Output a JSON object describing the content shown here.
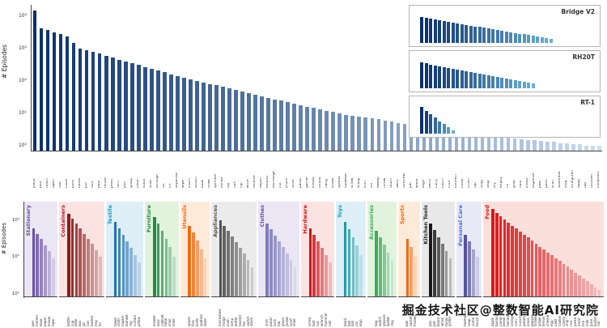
{
  "watermark": "掘金技术社区@整数智能AI研究院",
  "chart_data": [
    {
      "id": "skills",
      "type": "bar",
      "title": "",
      "xlabel": "",
      "ylabel": "# Episodes",
      "yscale": "log",
      "ylim": [
        0.7,
        22000
      ],
      "yticks": [
        "10⁰",
        "10¹",
        "10²",
        "10³",
        "10⁴"
      ],
      "legend": "none",
      "grid": false,
      "color_scale": [
        "#08306b",
        "#c9ddf0"
      ],
      "categories": [
        "place",
        "pick",
        "reach",
        "open",
        "use",
        "close",
        "push",
        "move",
        "put",
        "fold",
        "pour",
        "rotate",
        "press",
        "turn",
        "pull",
        "grasp",
        "clean",
        "stack",
        "slide",
        "arrange",
        "tilt",
        "lift",
        "separate",
        "wipe",
        "insert",
        "attach",
        "blow",
        "draw",
        "sprinkle",
        "center",
        "lay",
        "mix",
        "flip",
        "write",
        "receive",
        "adjust",
        "extend",
        "exchange",
        "cut",
        "brush",
        "drink",
        "paste",
        "gather",
        "knead",
        "unfold",
        "hang",
        "shake",
        "spread",
        "squeeze",
        "screw",
        "scoop",
        "shift",
        "stir",
        "sweep",
        "throw",
        "touch",
        "twist",
        "unscrew",
        "pat",
        "wave",
        "align",
        "bend",
        "carry",
        "catch",
        "click",
        "connect",
        "cover",
        "crush",
        "dip",
        "drag",
        "drop",
        "dry",
        "empty",
        "fill",
        "grab",
        "hold",
        "knock",
        "organize",
        "peel",
        "point",
        "scan",
        "assemble",
        "step",
        "straighten",
        "swap",
        "tap",
        "uncover",
        "compress"
      ],
      "values": [
        15000,
        4200,
        3600,
        3100,
        2700,
        2300,
        1500,
        1000,
        900,
        800,
        700,
        600,
        520,
        450,
        400,
        350,
        310,
        270,
        240,
        210,
        185,
        160,
        140,
        125,
        110,
        100,
        90,
        80,
        72,
        65,
        58,
        52,
        47,
        42,
        38,
        34,
        30,
        27,
        25,
        22,
        20,
        18,
        16,
        15,
        13,
        12,
        11,
        10,
        9,
        8.5,
        8,
        7.5,
        7,
        6.5,
        6,
        5.5,
        5,
        4.8,
        4.5,
        4.2,
        4,
        3.8,
        3.5,
        3.2,
        3,
        2.8,
        2.6,
        2.5,
        2.3,
        2.2,
        2,
        2,
        1.9,
        1.8,
        1.7,
        1.6,
        1.5,
        1.5,
        1.4,
        1.3,
        1.3,
        1.2,
        1.2,
        1.1,
        1.1,
        1,
        1,
        1
      ]
    },
    {
      "id": "insets",
      "type": "bar",
      "yscale": "log",
      "bar_color_scale": [
        "#08306b",
        "#6baed6"
      ],
      "panels": [
        {
          "label": "Bridge V2",
          "values": [
            2400,
            1900,
            1600,
            1350,
            1150,
            1000,
            870,
            760,
            660,
            580,
            510,
            450,
            390,
            340,
            300,
            260,
            230,
            200,
            175,
            150,
            130,
            115,
            100,
            88,
            77,
            67,
            59,
            51,
            45,
            40
          ]
        },
        {
          "label": "RH20T",
          "values": [
            2000,
            1600,
            1300,
            1100,
            950,
            800,
            690,
            590,
            510,
            440,
            380,
            330,
            285,
            245,
            210,
            180,
            155,
            135,
            115,
            100,
            86,
            74,
            64,
            55,
            48,
            41
          ]
        },
        {
          "label": "RT-1",
          "values": [
            70000,
            22000,
            9000,
            3500,
            1400,
            600,
            250,
            100
          ]
        }
      ]
    },
    {
      "id": "objects",
      "type": "bar",
      "title": "",
      "xlabel": "",
      "ylabel": "# Episodes",
      "yscale": "log",
      "ylim": [
        8,
        3200
      ],
      "yticks": [
        "10¹",
        "10²",
        "10³"
      ],
      "grid": false,
      "groups": [
        {
          "label": "Stationary",
          "label_color": "#6a51a3",
          "bg": "#eae6f3",
          "bar_color": "#6a51a3",
          "categories": [
            "pen",
            "marker",
            "book",
            "paper",
            "eraser",
            "tape"
          ],
          "values": [
            600,
            420,
            300,
            200,
            140,
            90
          ]
        },
        {
          "label": "Containers",
          "label_color": "#b2182b",
          "bg": "#fbe3e1",
          "bar_color": "#8b1a1a",
          "categories": [
            "bottle",
            "cup",
            "bowl",
            "box",
            "jar",
            "can",
            "basket",
            "tray",
            "lid"
          ],
          "values": [
            1500,
            1100,
            800,
            600,
            420,
            300,
            220,
            150,
            100
          ]
        },
        {
          "label": "Textile",
          "label_color": "#1f9bbf",
          "bg": "#ddeef7",
          "bar_color": "#2171b5",
          "categories": [
            "towel",
            "cloth",
            "napkin",
            "blanket",
            "rag",
            "curtain",
            "pillow"
          ],
          "values": [
            900,
            600,
            400,
            260,
            170,
            110,
            70
          ]
        },
        {
          "label": "Furniture",
          "label_color": "#238b45",
          "bg": "#e1f2dd",
          "bar_color": "#238b45",
          "categories": [
            "drawer",
            "door",
            "cabinet",
            "table",
            "chair",
            "shelf"
          ],
          "values": [
            1200,
            800,
            500,
            300,
            180,
            100
          ]
        },
        {
          "label": "Utensils",
          "label_color": "#f16913",
          "bg": "#fdead8",
          "bar_color": "#f16913",
          "categories": [
            "spoon",
            "fork",
            "knife",
            "spatula",
            "ladle"
          ],
          "values": [
            700,
            450,
            280,
            160,
            90
          ]
        },
        {
          "label": "Appliances",
          "label_color": "#555555",
          "bg": "#ebebeb",
          "bar_color": "#525252",
          "categories": [
            "microwave",
            "fridge",
            "oven",
            "lamp",
            "kettle",
            "toaster",
            "fan",
            "switch",
            "stove"
          ],
          "values": [
            1000,
            700,
            500,
            350,
            250,
            170,
            120,
            80,
            50
          ]
        },
        {
          "label": "Clothes",
          "label_color": "#6a51a3",
          "bg": "#eae6f3",
          "bar_color": "#807dba",
          "categories": [
            "shirt",
            "pants",
            "sock",
            "hat",
            "glove",
            "jacket",
            "scarf",
            "shoe"
          ],
          "values": [
            800,
            550,
            380,
            260,
            180,
            120,
            80,
            50
          ]
        },
        {
          "label": "Hardware",
          "label_color": "#cb181d",
          "bg": "#fbe3e1",
          "bar_color": "#cb181d",
          "categories": [
            "screw",
            "bolt",
            "nut",
            "wrench",
            "hammer",
            "nail"
          ],
          "values": [
            600,
            400,
            260,
            170,
            110,
            70
          ]
        },
        {
          "label": "Toys",
          "label_color": "#1f9bbf",
          "bg": "#ddeef7",
          "bar_color": "#239ba8",
          "categories": [
            "block",
            "ball",
            "doll",
            "car",
            "lego"
          ],
          "values": [
            900,
            550,
            330,
            200,
            110
          ]
        },
        {
          "label": "Accessories",
          "label_color": "#41ab5d",
          "bg": "#e1f2dd",
          "bar_color": "#41ab5d",
          "categories": [
            "bag",
            "watch",
            "glasses",
            "wallet",
            "ring"
          ],
          "values": [
            500,
            330,
            210,
            130,
            80
          ]
        },
        {
          "label": "Sports",
          "label_color": "#f16913",
          "bg": "#fdead8",
          "bar_color": "#f16913",
          "categories": [
            "ball",
            "racket",
            "frisbee"
          ],
          "values": [
            300,
            180,
            100
          ]
        },
        {
          "label": "Kitchen Tools",
          "label_color": "#252525",
          "bg": "#e8e8e8",
          "bar_color": "#1a1a1a",
          "categories": [
            "pan",
            "pot",
            "board",
            "whisk",
            "tongs",
            "grater"
          ],
          "values": [
            800,
            520,
            340,
            220,
            140,
            90
          ]
        },
        {
          "label": "Personal Care",
          "label_color": "#4a6fd4",
          "bg": "#e7e9f7",
          "bar_color": "#54539e",
          "categories": [
            "toothbrush",
            "soap",
            "comb",
            "brush"
          ],
          "values": [
            400,
            260,
            160,
            100
          ]
        },
        {
          "label": "Food",
          "label_color": "#e31a1c",
          "bg": "#fbdfda",
          "bar_color": "#d7191c",
          "categories": [
            "apple",
            "banana",
            "carrot",
            "bread",
            "tomato",
            "orange",
            "corn",
            "cucumber",
            "potato",
            "onion",
            "pepper",
            "strawberry",
            "grape",
            "lemon",
            "cheese",
            "egg",
            "cake",
            "cookie",
            "candy",
            "chip",
            "rice",
            "pasta",
            "meat",
            "fish",
            "milk",
            "juice",
            "butter",
            "nut"
          ],
          "values": [
            2000,
            1600,
            1300,
            1050,
            850,
            700,
            580,
            480,
            400,
            330,
            270,
            220,
            185,
            155,
            130,
            110,
            90,
            75,
            62,
            52,
            43,
            36,
            30,
            25,
            21,
            17,
            14,
            12
          ]
        }
      ]
    }
  ]
}
